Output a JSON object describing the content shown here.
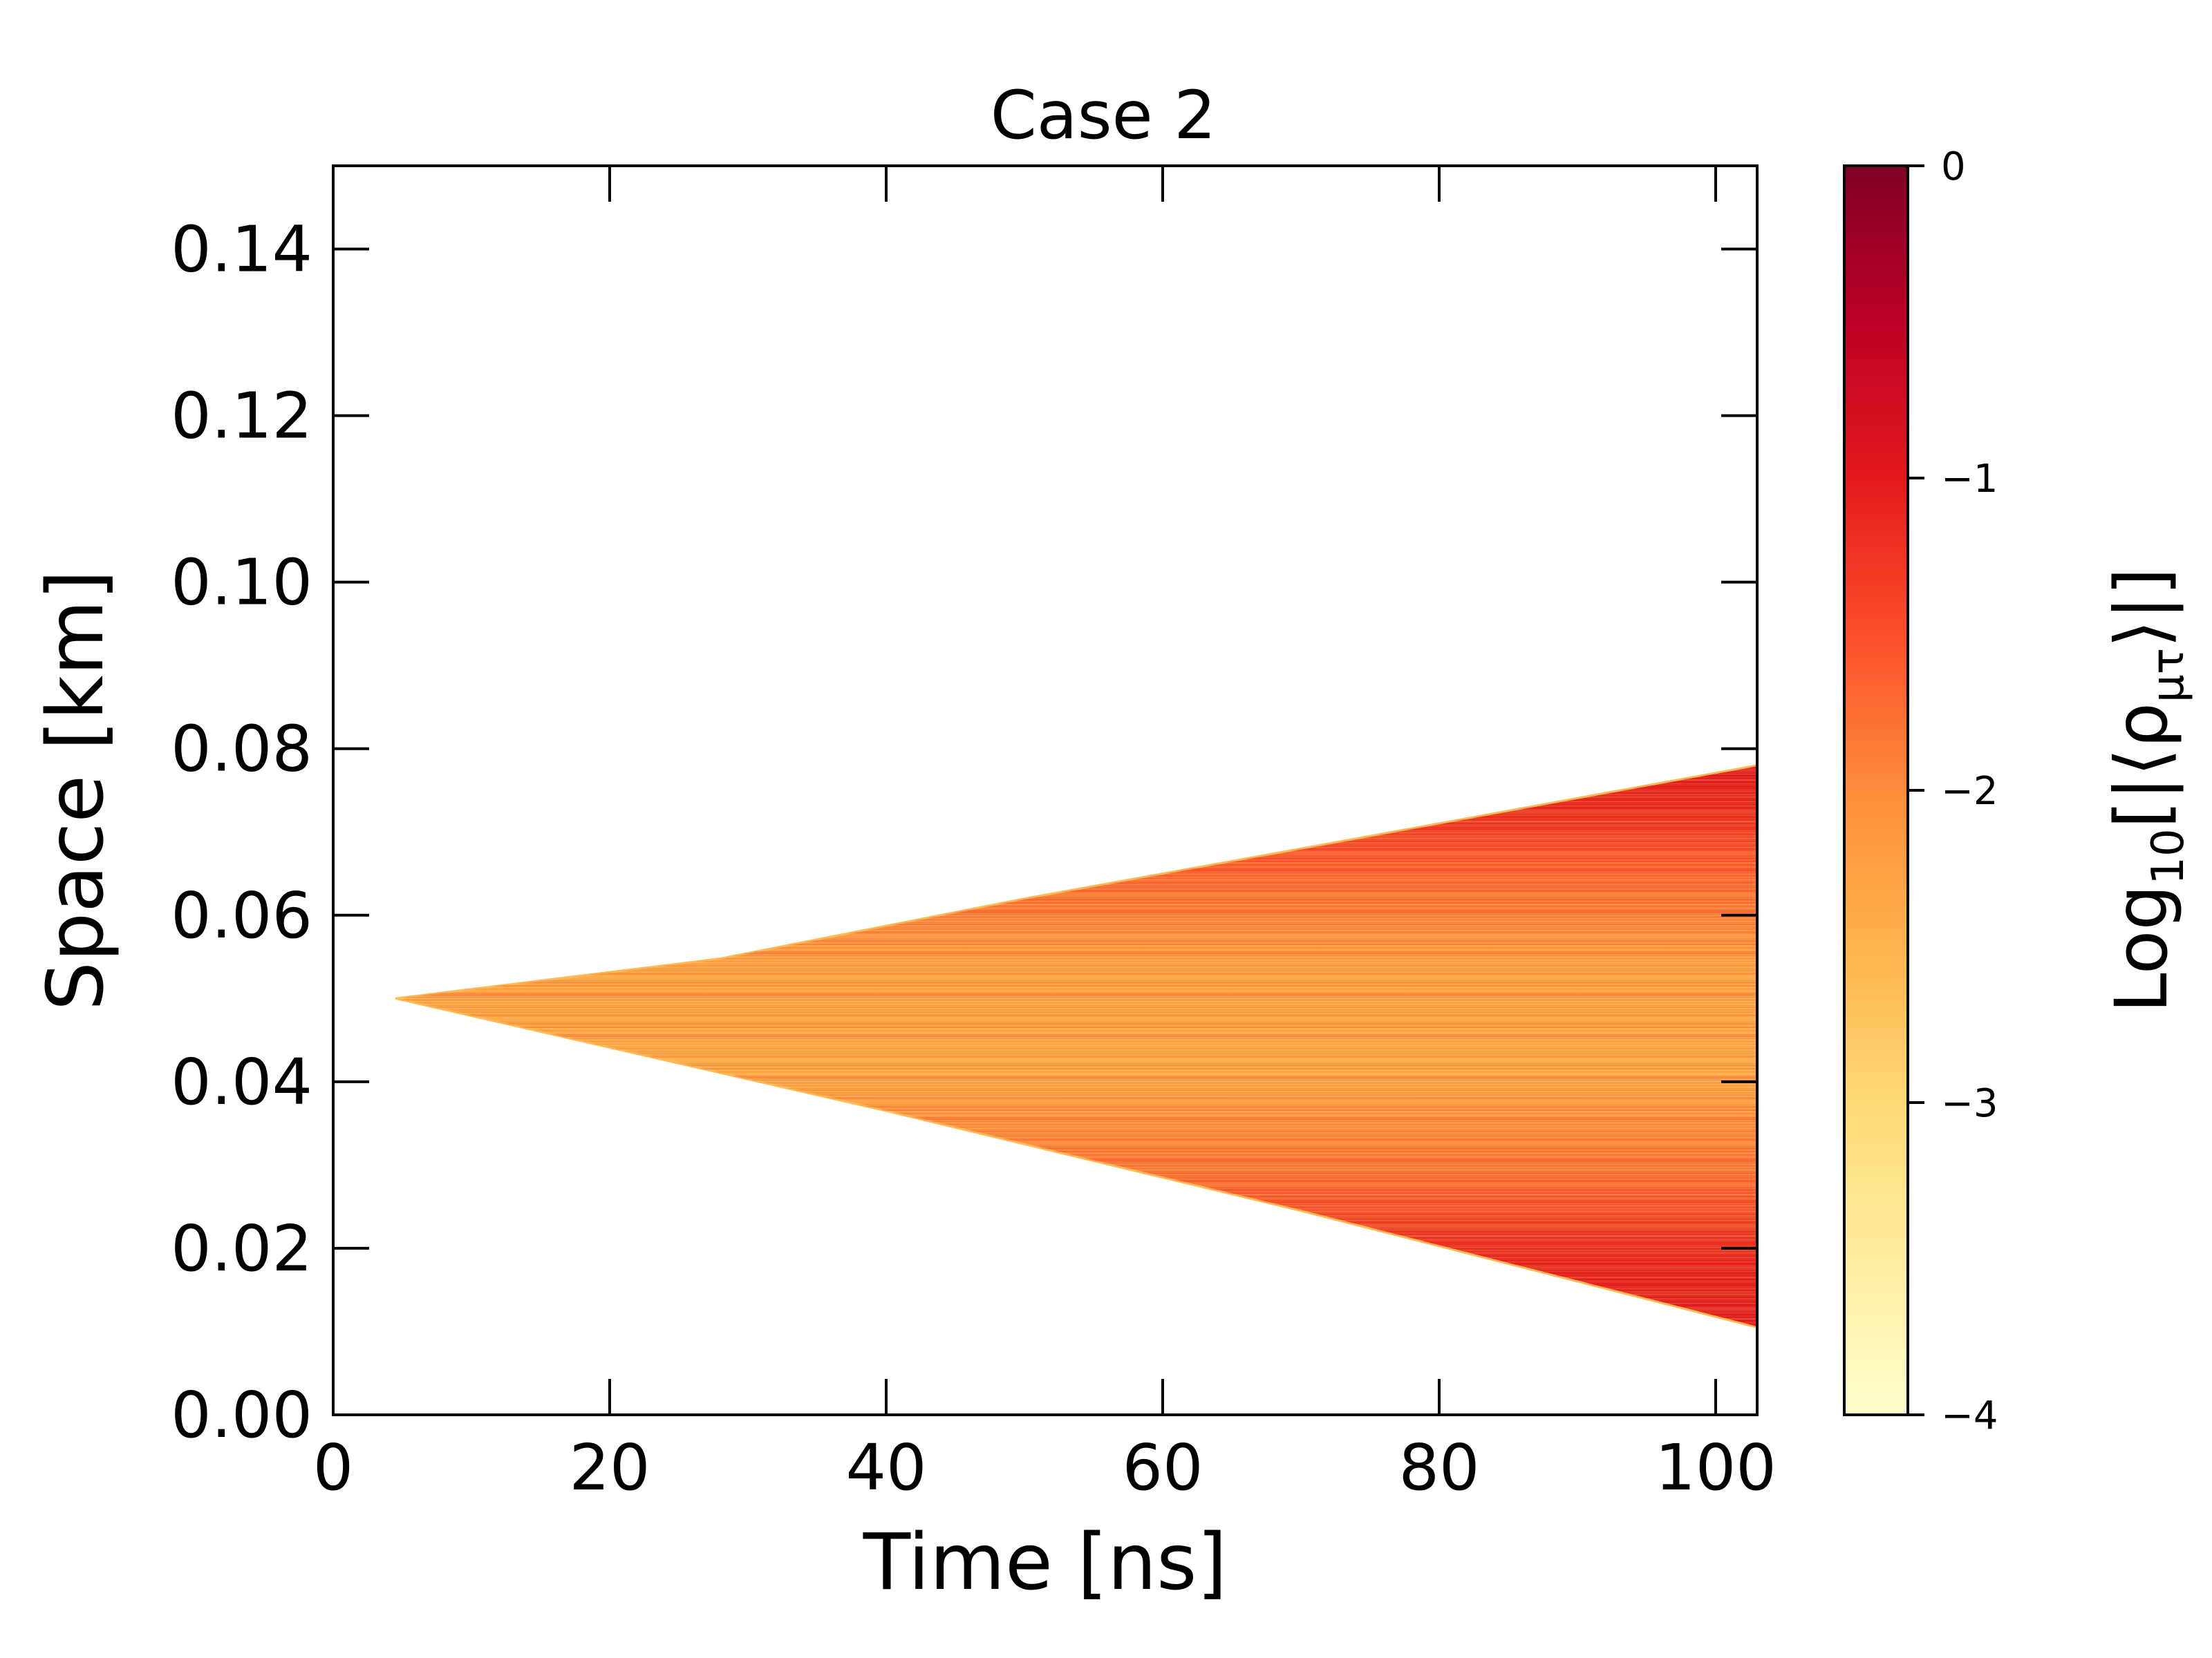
{
  "chart_data": {
    "type": "heatmap",
    "title": "Case 2",
    "xlabel": "Time [ns]",
    "ylabel": "Space [km]",
    "xlim": [
      0,
      103
    ],
    "ylim": [
      0,
      0.15
    ],
    "x_ticks": [
      0,
      20,
      40,
      60,
      80,
      100
    ],
    "x_tick_labels": [
      "0",
      "20",
      "40",
      "60",
      "80",
      "100"
    ],
    "y_ticks": [
      0,
      0.02,
      0.04,
      0.06,
      0.08,
      0.1,
      0.12,
      0.14
    ],
    "y_tick_labels": [
      "0.00",
      "0.02",
      "0.04",
      "0.06",
      "0.08",
      "0.10",
      "0.12",
      "0.14"
    ],
    "grid": false,
    "colorbar": {
      "label_prefix": "Log",
      "label_sub": "10",
      "label_body": "[|⟨ρ",
      "label_sub2": "μτ",
      "label_suffix": "⟩|]",
      "range": [
        -4,
        0
      ],
      "ticks": [
        0,
        -1,
        -2,
        -3,
        -4
      ],
      "tick_labels": [
        "0",
        "−1",
        "−2",
        "−3",
        "−4"
      ],
      "colormap": "YlOrRd",
      "colors": [
        "#ffffcc",
        "#ffeda0",
        "#fed976",
        "#feb24c",
        "#fd8d3c",
        "#fc4e2a",
        "#e31a1c",
        "#bd0026",
        "#800026"
      ]
    },
    "wedge": {
      "origin": {
        "t": 4.5,
        "x": 0.05
      },
      "upper_edge": [
        {
          "t": 4.5,
          "x": 0.05
        },
        {
          "t": 28,
          "x": 0.0548
        },
        {
          "t": 50,
          "x": 0.062
        },
        {
          "t": 70,
          "x": 0.068
        },
        {
          "t": 103,
          "x": 0.078
        }
      ],
      "lower_edge": [
        {
          "t": 4.5,
          "x": 0.05
        },
        {
          "t": 40,
          "x": 0.0365
        },
        {
          "t": 70,
          "x": 0.0245
        },
        {
          "t": 103,
          "x": 0.0105
        }
      ],
      "edge_level": -1.0,
      "core_level": -2.3
    }
  }
}
